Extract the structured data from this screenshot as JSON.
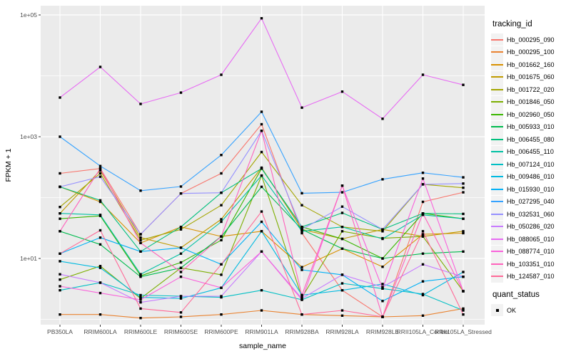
{
  "chart_data": {
    "type": "line",
    "title": "",
    "xlabel": "sample_name",
    "ylabel": "FPKM + 1",
    "x_categories": [
      "PB350LA",
      "RRIM600LA",
      "RRIM600LE",
      "RRIM600SE",
      "RRIM600PE",
      "RRIM901LA",
      "RRIM928BA",
      "RRIM928LA",
      "RRIM928LE",
      "RRII105LA_Control",
      "RRII105LA_Stressed"
    ],
    "y_scale": "log10",
    "ylim": [
      0.85,
      140000
    ],
    "y_ticks": [
      {
        "label": "1e+01",
        "value": 10
      },
      {
        "label": "1e+03",
        "value": 1000
      },
      {
        "label": "1e+05",
        "value": 100000
      }
    ],
    "y_minor_ticks": [
      1,
      100,
      10000
    ],
    "grid": true,
    "legend_position": "right",
    "panel_bg": "#EBEBEB",
    "grid_color": "#FFFFFF",
    "tick_label_color": "#4D4D4D",
    "axis_title_color": "#000000",
    "point_marker": {
      "shape": "square",
      "color": "#000000",
      "status_label": "OK"
    },
    "series": [
      {
        "name": "Hb_000295_090",
        "color": "#F8766D",
        "values": [
          250,
          300,
          25,
          117,
          250,
          1600,
          26,
          3,
          1.1,
          85,
          122
        ]
      },
      {
        "name": "Hb_000295_100",
        "color": "#EA8331",
        "values": [
          1.2,
          1.2,
          1.05,
          1.1,
          1.2,
          1.4,
          1.2,
          1.15,
          1.1,
          1.15,
          1.5
        ]
      },
      {
        "name": "Hb_001662_160",
        "color": "#D89000",
        "values": [
          150,
          85,
          18,
          33,
          23,
          28,
          7.2,
          14.5,
          7.3,
          25,
          26
        ]
      },
      {
        "name": "Hb_001675_060",
        "color": "#C09B00",
        "values": [
          55,
          280,
          22,
          15,
          44,
          310,
          30,
          21,
          30,
          23,
          28
        ]
      },
      {
        "name": "Hb_001722_020",
        "color": "#A3A500",
        "values": [
          70,
          250,
          20,
          30,
          75,
          560,
          75,
          33,
          28,
          165,
          145
        ]
      },
      {
        "name": "Hb_001846_050",
        "color": "#7CAE00",
        "values": [
          4.5,
          7.5,
          2.2,
          7,
          5.4,
          230,
          2.3,
          28,
          21.5,
          23,
          2.9
        ]
      },
      {
        "name": "Hb_002960_050",
        "color": "#39B600",
        "values": [
          45,
          50,
          5.2,
          8.6,
          20,
          300,
          33,
          21,
          10,
          55,
          45
        ]
      },
      {
        "name": "Hb_005933_010",
        "color": "#00BB4E",
        "values": [
          28,
          17,
          5,
          7,
          23,
          150,
          30,
          14.5,
          10,
          12,
          13
        ]
      },
      {
        "name": "Hb_006455_080",
        "color": "#00BF7D",
        "values": [
          150,
          90,
          13,
          33,
          120,
          300,
          33,
          56,
          30,
          55,
          54
        ]
      },
      {
        "name": "Hb_006455_110",
        "color": "#00C1A3",
        "values": [
          55,
          52,
          5.5,
          12,
          40,
          230,
          28,
          33,
          21,
          52,
          45
        ]
      },
      {
        "name": "Hb_007124_010",
        "color": "#00BFC4",
        "values": [
          3,
          4,
          2.5,
          2.4,
          2.3,
          3,
          2.1,
          3.9,
          3.2,
          2.6,
          1.4
        ]
      },
      {
        "name": "Hb_009486_010",
        "color": "#00BAE0",
        "values": [
          9,
          7,
          2.3,
          2.2,
          3.3,
          28,
          2.5,
          3,
          3.8,
          2.5,
          6
        ]
      },
      {
        "name": "Hb_015930_010",
        "color": "#00B0F6",
        "values": [
          12,
          22,
          13,
          15,
          8,
          40,
          6.5,
          5.4,
          2,
          4.2,
          5
        ]
      },
      {
        "name": "Hb_027295_040",
        "color": "#35A2FF",
        "values": [
          1000,
          330,
          130,
          152,
          500,
          2570,
          118,
          122,
          200,
          255,
          215
        ]
      },
      {
        "name": "Hb_032531_060",
        "color": "#9590FF",
        "values": [
          150,
          220,
          25,
          117,
          120,
          1250,
          30,
          71,
          30,
          165,
          170
        ]
      },
      {
        "name": "Hb_050286_020",
        "color": "#C77CFF",
        "values": [
          5.5,
          4,
          1.9,
          2.4,
          2.4,
          13,
          2.2,
          5.4,
          3.4,
          8,
          5
        ]
      },
      {
        "name": "Hb_088065_010",
        "color": "#E76BF3",
        "values": [
          4400,
          14000,
          3450,
          5300,
          10400,
          88000,
          3000,
          5500,
          1970,
          10400,
          7100
        ]
      },
      {
        "name": "Hb_088774_010",
        "color": "#FA62DB",
        "values": [
          3.5,
          2.7,
          2.1,
          5,
          3.3,
          13,
          2.1,
          157,
          3.2,
          205,
          2.9
        ]
      },
      {
        "name": "Hb_103351_010",
        "color": "#FF62BC",
        "values": [
          28,
          300,
          18,
          6,
          23,
          1250,
          2.5,
          157,
          1.1,
          55,
          2.9
        ]
      },
      {
        "name": "Hb_124587_010",
        "color": "#FF6A98",
        "values": [
          12,
          29,
          1.5,
          1.3,
          8,
          59,
          1.2,
          1.4,
          1.1,
          28,
          1.2
        ]
      }
    ]
  },
  "legend": {
    "tracking_title": "tracking_id",
    "quant_title": "quant_status",
    "quant_ok_label": "OK"
  }
}
